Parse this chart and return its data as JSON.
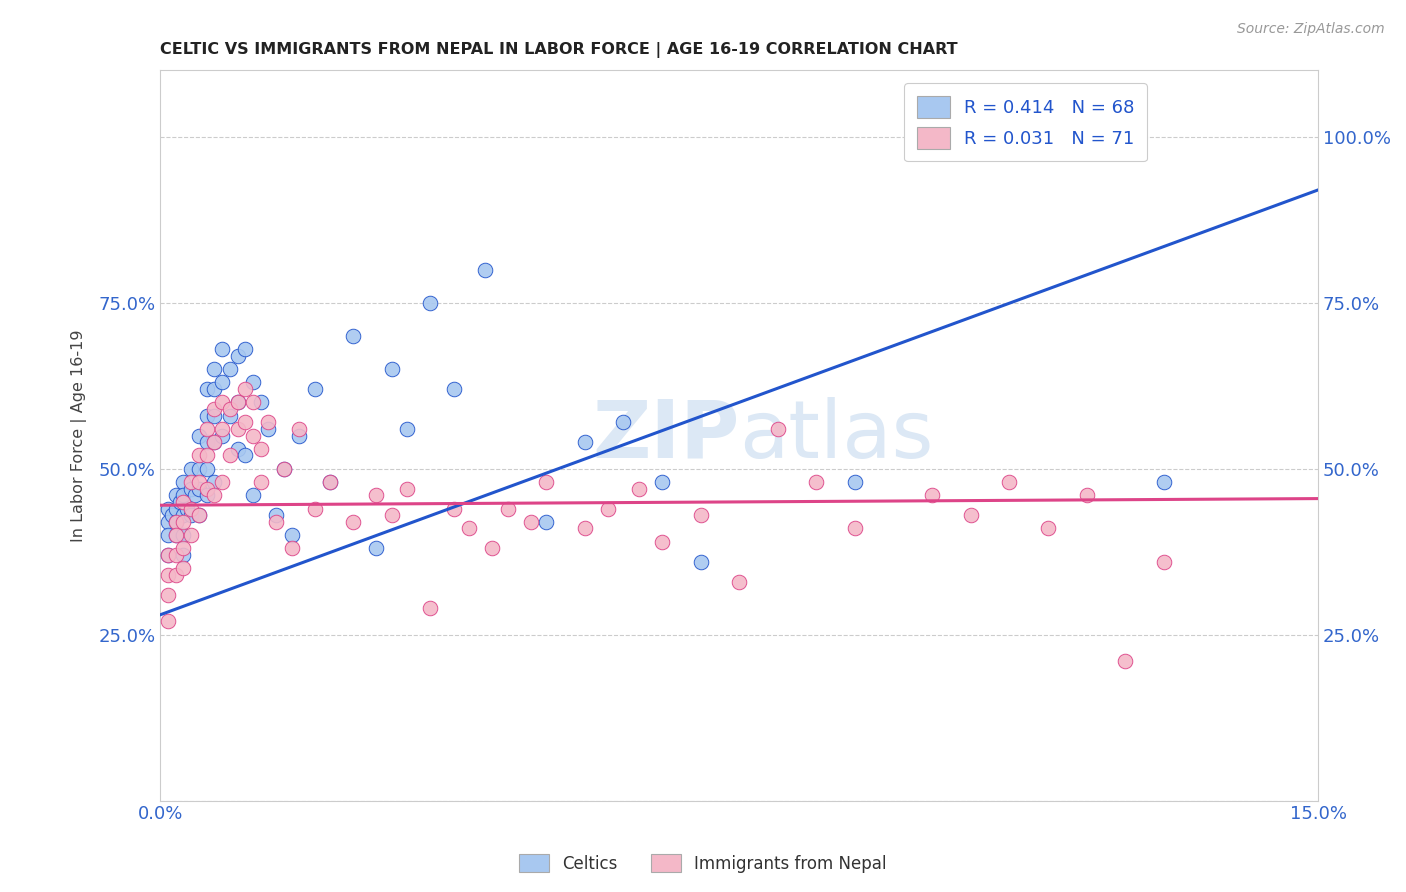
{
  "title": "CELTIC VS IMMIGRANTS FROM NEPAL IN LABOR FORCE | AGE 16-19 CORRELATION CHART",
  "source_text": "Source: ZipAtlas.com",
  "ylabel": "In Labor Force | Age 16-19",
  "xlim": [
    0.0,
    0.15
  ],
  "ylim": [
    0.0,
    1.1
  ],
  "yticks": [
    0.0,
    0.25,
    0.5,
    0.75,
    1.0
  ],
  "ytick_labels_left": [
    "",
    "25.0%",
    "50.0%",
    "75.0%",
    ""
  ],
  "ytick_labels_right": [
    "",
    "25.0%",
    "50.0%",
    "75.0%",
    "100.0%"
  ],
  "xtick_vals": [
    0.0,
    0.025,
    0.05,
    0.075,
    0.1,
    0.125,
    0.15
  ],
  "xtick_labels": [
    "0.0%",
    "",
    "",
    "",
    "",
    "",
    "15.0%"
  ],
  "celtics_color": "#a8c8f0",
  "nepal_color": "#f4b8c8",
  "trend_celtics_color": "#2255cc",
  "trend_nepal_color": "#dd4488",
  "background_color": "#ffffff",
  "grid_color": "#cccccc",
  "title_color": "#222222",
  "axis_label_color": "#444444",
  "tick_color": "#3366cc",
  "watermark_color": "#dce8f5",
  "celtics_x": [
    0.001,
    0.001,
    0.001,
    0.001,
    0.0015,
    0.002,
    0.002,
    0.002,
    0.002,
    0.0025,
    0.003,
    0.003,
    0.003,
    0.003,
    0.003,
    0.0035,
    0.004,
    0.004,
    0.004,
    0.0045,
    0.005,
    0.005,
    0.005,
    0.005,
    0.006,
    0.006,
    0.006,
    0.006,
    0.006,
    0.007,
    0.007,
    0.007,
    0.007,
    0.007,
    0.008,
    0.008,
    0.008,
    0.009,
    0.009,
    0.01,
    0.01,
    0.01,
    0.011,
    0.011,
    0.012,
    0.012,
    0.013,
    0.014,
    0.015,
    0.016,
    0.017,
    0.018,
    0.02,
    0.022,
    0.025,
    0.028,
    0.03,
    0.032,
    0.035,
    0.038,
    0.042,
    0.05,
    0.055,
    0.06,
    0.065,
    0.07,
    0.09,
    0.13
  ],
  "celtics_y": [
    0.44,
    0.42,
    0.4,
    0.37,
    0.43,
    0.46,
    0.44,
    0.42,
    0.4,
    0.45,
    0.48,
    0.46,
    0.43,
    0.4,
    0.37,
    0.44,
    0.5,
    0.47,
    0.43,
    0.46,
    0.55,
    0.5,
    0.47,
    0.43,
    0.62,
    0.58,
    0.54,
    0.5,
    0.46,
    0.65,
    0.62,
    0.58,
    0.54,
    0.48,
    0.68,
    0.63,
    0.55,
    0.65,
    0.58,
    0.67,
    0.6,
    0.53,
    0.68,
    0.52,
    0.63,
    0.46,
    0.6,
    0.56,
    0.43,
    0.5,
    0.4,
    0.55,
    0.62,
    0.48,
    0.7,
    0.38,
    0.65,
    0.56,
    0.75,
    0.62,
    0.8,
    0.42,
    0.54,
    0.57,
    0.48,
    0.36,
    0.48,
    0.48
  ],
  "nepal_x": [
    0.001,
    0.001,
    0.001,
    0.001,
    0.002,
    0.002,
    0.002,
    0.002,
    0.003,
    0.003,
    0.003,
    0.003,
    0.004,
    0.004,
    0.004,
    0.005,
    0.005,
    0.005,
    0.006,
    0.006,
    0.006,
    0.007,
    0.007,
    0.007,
    0.008,
    0.008,
    0.008,
    0.009,
    0.009,
    0.01,
    0.01,
    0.011,
    0.011,
    0.012,
    0.012,
    0.013,
    0.013,
    0.014,
    0.015,
    0.016,
    0.017,
    0.018,
    0.02,
    0.022,
    0.025,
    0.028,
    0.03,
    0.032,
    0.035,
    0.038,
    0.04,
    0.043,
    0.045,
    0.048,
    0.05,
    0.055,
    0.058,
    0.062,
    0.065,
    0.07,
    0.075,
    0.08,
    0.085,
    0.09,
    0.1,
    0.105,
    0.11,
    0.115,
    0.12,
    0.125,
    0.13
  ],
  "nepal_y": [
    0.37,
    0.34,
    0.31,
    0.27,
    0.42,
    0.4,
    0.37,
    0.34,
    0.45,
    0.42,
    0.38,
    0.35,
    0.48,
    0.44,
    0.4,
    0.52,
    0.48,
    0.43,
    0.56,
    0.52,
    0.47,
    0.59,
    0.54,
    0.46,
    0.6,
    0.56,
    0.48,
    0.59,
    0.52,
    0.6,
    0.56,
    0.62,
    0.57,
    0.6,
    0.55,
    0.53,
    0.48,
    0.57,
    0.42,
    0.5,
    0.38,
    0.56,
    0.44,
    0.48,
    0.42,
    0.46,
    0.43,
    0.47,
    0.29,
    0.44,
    0.41,
    0.38,
    0.44,
    0.42,
    0.48,
    0.41,
    0.44,
    0.47,
    0.39,
    0.43,
    0.33,
    0.56,
    0.48,
    0.41,
    0.46,
    0.43,
    0.48,
    0.41,
    0.46,
    0.21,
    0.36
  ]
}
